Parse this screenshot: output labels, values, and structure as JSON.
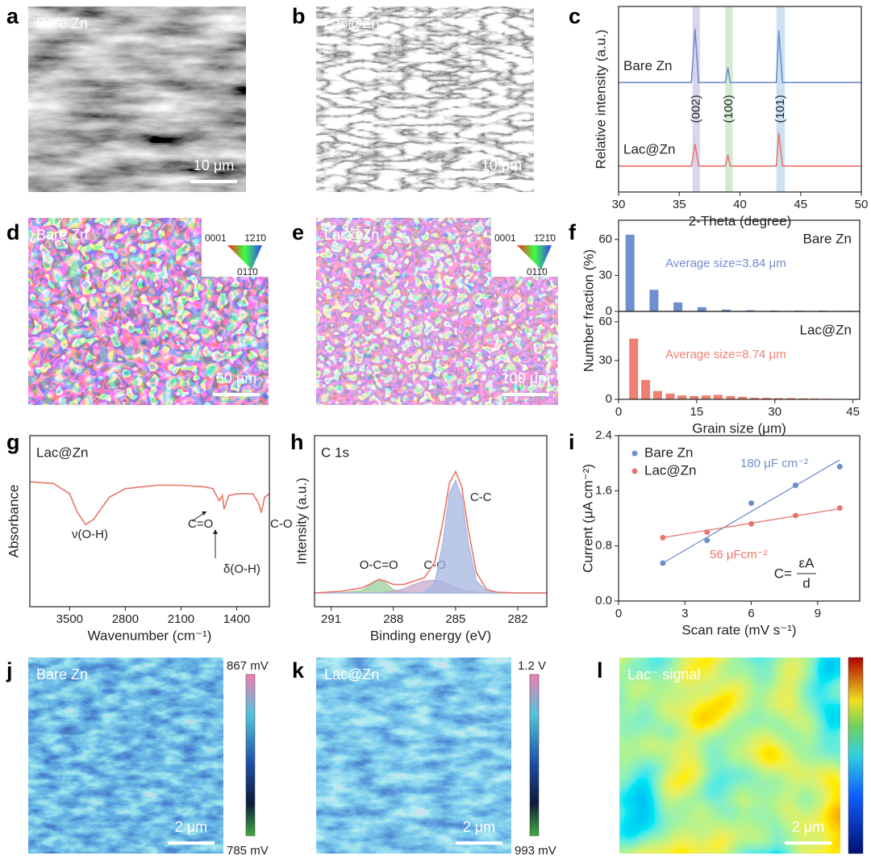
{
  "images": [
    {
      "letter": "a",
      "label": "Bare Zn",
      "scale_bar": "10 μm"
    },
    {
      "letter": "b",
      "label": "Lac@Zn",
      "scale_bar": "10 μm"
    },
    {
      "letter": "d",
      "label": "Bare Zn",
      "scale_bar": "50 μm",
      "key": [
        "0001",
        "1̄21̄0",
        "011̄0"
      ]
    },
    {
      "letter": "e",
      "label": "Lac@Zn",
      "scale_bar": "100 μm",
      "key": [
        "0001",
        "1̄21̄0",
        "011̄0"
      ]
    },
    {
      "letter": "j",
      "label": "Bare Zn",
      "scale_bar": "2 μm",
      "colorbar": {
        "max": "867 mV",
        "min": "785 mV"
      }
    },
    {
      "letter": "k",
      "label": "Lac@Zn",
      "scale_bar": "2 μm",
      "colorbar": {
        "max": "1.2 V",
        "min": "993 mV"
      }
    },
    {
      "letter": "l",
      "label": "Lac⁻ signal",
      "scale_bar": "2 μm"
    }
  ],
  "chart_data": [
    {
      "type": "line",
      "letter": "c",
      "xlabel": "2-Theta (degree)",
      "ylabel": "Relative intensity (a.u.)",
      "x": [
        30,
        36.0,
        36.3,
        36.6,
        38.8,
        39.0,
        39.2,
        43.0,
        43.2,
        43.5,
        50
      ],
      "xlim": [
        30,
        50
      ],
      "xticks": [
        30,
        35,
        40,
        45,
        50
      ],
      "ylim": [
        0,
        10
      ],
      "series": [
        {
          "name": "Bare Zn",
          "color": "#6e8fca",
          "values": [
            5.9,
            5.9,
            8.8,
            5.9,
            5.9,
            6.7,
            5.9,
            5.9,
            8.7,
            5.9,
            5.9
          ]
        },
        {
          "name": "Lac@Zn",
          "color": "#e8766a",
          "values": [
            1.4,
            1.4,
            2.6,
            1.4,
            1.4,
            2.0,
            1.4,
            1.4,
            3.2,
            1.4,
            1.4
          ]
        }
      ],
      "peak_bands": [
        {
          "label": "(002)",
          "range": [
            36.1,
            36.7
          ],
          "color": "#cfc9ea"
        },
        {
          "label": "(100)",
          "range": [
            38.8,
            39.4
          ],
          "color": "#c4e6c4"
        },
        {
          "label": "(101)",
          "range": [
            43.0,
            43.7
          ],
          "color": "#bcdaf0"
        }
      ]
    },
    {
      "type": "bar",
      "letter": "f",
      "ylabel": "Number fraction (%)",
      "x": [
        2.2,
        6.8,
        11.4,
        16.0,
        20.7,
        25.3,
        29.9,
        34.6,
        39.2,
        43.8
      ],
      "xlim": [
        0,
        46.3
      ],
      "ylim": [
        0,
        76
      ],
      "yticks": [
        0,
        30,
        60
      ],
      "series": [
        {
          "name": "Bare Zn",
          "color": "#6f8fcf",
          "values": [
            64,
            18,
            7.5,
            3.5,
            1.5,
            1,
            0.7,
            0.7,
            0.7,
            0.5
          ]
        }
      ],
      "annotation": "Average size=3.84 μm"
    },
    {
      "type": "bar",
      "xlabel": "Grain size (μm)",
      "x": [
        2.9,
        5.2,
        7.5,
        9.9,
        12.2,
        14.5,
        16.8,
        19.1,
        21.5,
        23.8,
        26.1,
        28.4,
        30.7,
        33.1,
        35.4,
        37.7,
        40.0,
        42.3
      ],
      "xlim": [
        0,
        46.3
      ],
      "xticks": [
        0,
        15,
        30,
        45
      ],
      "ylim": [
        0,
        68
      ],
      "yticks": [
        0,
        30,
        60
      ],
      "series": [
        {
          "name": "Lac@Zn",
          "color": "#ee7f72",
          "values": [
            47,
            15,
            6.5,
            4.5,
            3,
            2.5,
            3,
            3.5,
            2.5,
            2,
            1.3,
            1.2,
            1,
            1,
            0.8,
            0.7,
            0.5,
            0.4
          ]
        }
      ],
      "annotation": "Average size=8.74 μm"
    },
    {
      "type": "line",
      "letter": "g",
      "title": "Lac@Zn",
      "xlabel": "Wavenumber (cm⁻¹)",
      "ylabel": "Absorbance",
      "x": [
        4000,
        3700,
        3500,
        3400,
        3300,
        3200,
        3000,
        2800,
        2400,
        2100,
        1800,
        1700,
        1620,
        1580,
        1560,
        1500,
        1400,
        1200,
        1130,
        1090,
        1050,
        990
      ],
      "xlim": [
        4000,
        990
      ],
      "xticks": [
        3500,
        2800,
        2100,
        1400
      ],
      "ylim": [
        0,
        10
      ],
      "series": [
        {
          "color": "#e8766a",
          "values": [
            7.3,
            7.2,
            6.6,
            5.5,
            4.8,
            5.1,
            6.4,
            6.9,
            7.1,
            7.1,
            7.0,
            6.9,
            6.2,
            6.5,
            5.7,
            6.5,
            6.6,
            6.6,
            6.1,
            5.5,
            6.4,
            6.6
          ]
        }
      ],
      "annotations": [
        "ν(O-H)",
        "C=O",
        "δ(O-H)",
        "C-O"
      ]
    },
    {
      "type": "area",
      "letter": "h",
      "title": "C 1s",
      "xlabel": "Binding energy (eV)",
      "ylabel": "Intensity (a.u.)",
      "x": [
        291.8,
        290.5,
        289.5,
        289.0,
        288.7,
        288.4,
        288.0,
        287.5,
        287.0,
        286.5,
        286.0,
        285.6,
        285.3,
        285.0,
        284.7,
        284.4,
        284.0,
        283.5,
        283.0,
        282.0,
        280.6
      ],
      "xlim": [
        291.8,
        280.6
      ],
      "xticks": [
        291,
        288,
        285,
        282
      ],
      "ylim": [
        0,
        10
      ],
      "series": [
        {
          "name": "O-C=O",
          "color": "#9ccf9c",
          "fill": true,
          "values": [
            0.8,
            0.8,
            0.95,
            1.35,
            1.55,
            1.4,
            1.0,
            0.85,
            0.8,
            0.8,
            0.8,
            0.8,
            0.8,
            0.8,
            0.8,
            0.8,
            0.8,
            0.8,
            0.8,
            0.8,
            0.8
          ]
        },
        {
          "name": "C-O",
          "color": "#c7aacd",
          "fill": true,
          "values": [
            0.8,
            0.8,
            0.8,
            0.8,
            0.8,
            0.85,
            0.9,
            1.05,
            1.3,
            1.5,
            1.55,
            1.45,
            1.3,
            1.1,
            1.0,
            0.9,
            0.85,
            0.8,
            0.8,
            0.8,
            0.8
          ]
        },
        {
          "name": "C-C",
          "color": "#a5b6e0",
          "fill": true,
          "values": [
            0.8,
            0.8,
            0.8,
            0.8,
            0.8,
            0.8,
            0.8,
            0.8,
            0.8,
            0.85,
            1.4,
            3.8,
            6.6,
            7.4,
            6.4,
            3.8,
            1.5,
            0.9,
            0.8,
            0.8,
            0.8
          ]
        },
        {
          "color": "#e8766a",
          "fill": false,
          "values": [
            0.8,
            0.9,
            1.1,
            1.4,
            1.6,
            1.5,
            1.3,
            1.3,
            1.5,
            1.7,
            2.6,
            5.0,
            7.2,
            7.9,
            7.0,
            4.6,
            2.0,
            1.0,
            0.85,
            0.8,
            0.8
          ]
        }
      ]
    },
    {
      "type": "scatter",
      "letter": "i",
      "xlabel": "Scan rate (mV s⁻¹)",
      "ylabel": "Current (μA cm⁻²)",
      "x": [
        2,
        4,
        6,
        8,
        10
      ],
      "xlim": [
        0,
        10.9
      ],
      "xticks": [
        0,
        3,
        6,
        9
      ],
      "ylim": [
        0,
        2.4
      ],
      "yticks": [
        {
          "value": 0,
          "label": "0.0"
        },
        0.8,
        1.6,
        2.4
      ],
      "legend": "upper left",
      "fit_x": [
        2,
        10
      ],
      "series": [
        {
          "name": "Bare Zn",
          "color": "#6e8fca",
          "values": [
            0.55,
            0.88,
            1.42,
            1.68,
            1.95
          ],
          "fit": [
            0.55,
            2.05
          ],
          "annotation": "180 μF cm⁻²"
        },
        {
          "name": "Lac@Zn",
          "color": "#e8766a",
          "values": [
            0.92,
            1.0,
            1.12,
            1.24,
            1.35
          ],
          "fit": [
            0.92,
            1.34
          ],
          "annotation": "56 μFcm⁻²"
        }
      ],
      "formula": {
        "lhs": "C=",
        "numerator": "εA",
        "denominator": "d"
      }
    }
  ]
}
